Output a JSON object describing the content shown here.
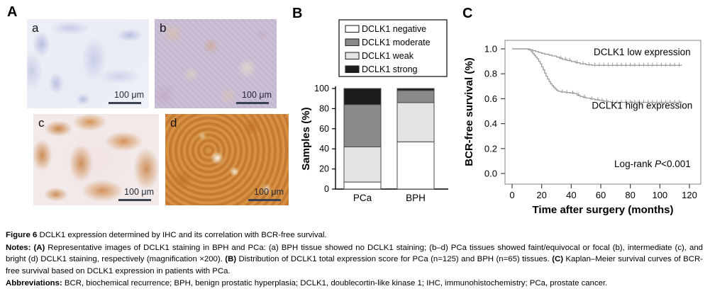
{
  "panelA": {
    "label": "A",
    "images": [
      {
        "label": "a",
        "scale_label": "100 μm",
        "stain_style": "bph-negative-hematoxylin"
      },
      {
        "label": "b",
        "scale_label": "100 μm",
        "stain_style": "pca-faint-equivocal"
      },
      {
        "label": "c",
        "scale_label": "100 μm",
        "stain_style": "pca-intermediate"
      },
      {
        "label": "d",
        "scale_label": "100 μm",
        "stain_style": "pca-bright"
      }
    ]
  },
  "panelB": {
    "label": "B"
  },
  "panelC": {
    "label": "C"
  },
  "chart_data": [
    {
      "type": "bar",
      "stacked": true,
      "title": "",
      "xlabel": "",
      "ylabel": "Samples (%)",
      "categories": [
        "PCa",
        "BPH"
      ],
      "ylim": [
        0,
        100
      ],
      "yticks": [
        0,
        20,
        40,
        60,
        80,
        100
      ],
      "grid": false,
      "legend_position": "top",
      "legend_order": [
        "DCLK1 negative",
        "DCLK1 moderate",
        "DCLK1 weak",
        "DCLK1 strong"
      ],
      "bar_border_color": "#4a4a4a",
      "series": [
        {
          "name": "DCLK1 negative",
          "color": "#ffffff",
          "values": [
            7,
            47
          ]
        },
        {
          "name": "DCLK1 weak",
          "color": "#e4e4e4",
          "values": [
            35,
            39
          ]
        },
        {
          "name": "DCLK1 moderate",
          "color": "#8a8a8a",
          "values": [
            42,
            12
          ]
        },
        {
          "name": "DCLK1 strong",
          "color": "#1c1c1c",
          "values": [
            16,
            2
          ]
        }
      ]
    },
    {
      "type": "line",
      "subtype": "kaplan-meier-step",
      "title": "",
      "xlabel": "Time after surgery (months)",
      "ylabel": "BCR-free survival (%)",
      "xlim": [
        0,
        125
      ],
      "ylim": [
        0.0,
        1.0
      ],
      "xticks": [
        0,
        20,
        40,
        60,
        80,
        100,
        120
      ],
      "yticks": [
        0.0,
        0.2,
        0.4,
        0.6,
        0.8,
        1.0
      ],
      "grid": false,
      "line_color": "#9a9a9a",
      "series": [
        {
          "name": "DCLK1 low expression",
          "points": [
            [
              0,
              1.0
            ],
            [
              9,
              1.0
            ],
            [
              11,
              0.993
            ],
            [
              14,
              0.985
            ],
            [
              16,
              0.978
            ],
            [
              18,
              0.971
            ],
            [
              20,
              0.964
            ],
            [
              22,
              0.957
            ],
            [
              25,
              0.95
            ],
            [
              27,
              0.943
            ],
            [
              30,
              0.934
            ],
            [
              32,
              0.925
            ],
            [
              34,
              0.916
            ],
            [
              37,
              0.907
            ],
            [
              40,
              0.898
            ],
            [
              43,
              0.889
            ],
            [
              46,
              0.88
            ],
            [
              50,
              0.872
            ],
            [
              54,
              0.868
            ],
            [
              115,
              0.868
            ]
          ],
          "censors": [
            33,
            36,
            39,
            44,
            48,
            52,
            56,
            59,
            62,
            65,
            68,
            71,
            74,
            77,
            80,
            83,
            86,
            89,
            92,
            95,
            98,
            101,
            104,
            107,
            110,
            113
          ]
        },
        {
          "name": "DCLK1 high expression",
          "points": [
            [
              0,
              1.0
            ],
            [
              10,
              1.0
            ],
            [
              12,
              0.99
            ],
            [
              13,
              0.976
            ],
            [
              14,
              0.962
            ],
            [
              15,
              0.948
            ],
            [
              16,
              0.934
            ],
            [
              17,
              0.92
            ],
            [
              18,
              0.9
            ],
            [
              19,
              0.88
            ],
            [
              20,
              0.856
            ],
            [
              21,
              0.832
            ],
            [
              22,
              0.806
            ],
            [
              23,
              0.78
            ],
            [
              24,
              0.758
            ],
            [
              25,
              0.738
            ],
            [
              26,
              0.72
            ],
            [
              27,
              0.705
            ],
            [
              28,
              0.692
            ],
            [
              29,
              0.68
            ],
            [
              30,
              0.668
            ],
            [
              31,
              0.66
            ],
            [
              33,
              0.654
            ],
            [
              36,
              0.65
            ],
            [
              39,
              0.646
            ],
            [
              42,
              0.642
            ],
            [
              44,
              0.628
            ],
            [
              46,
              0.618
            ],
            [
              48,
              0.612
            ],
            [
              50,
              0.605
            ],
            [
              53,
              0.598
            ],
            [
              56,
              0.592
            ],
            [
              59,
              0.586
            ],
            [
              62,
              0.58
            ],
            [
              65,
              0.575
            ],
            [
              67,
              0.571
            ],
            [
              115,
              0.571
            ]
          ],
          "censors": [
            34,
            37,
            41,
            45,
            49,
            54,
            58,
            61,
            64,
            68,
            71,
            74,
            77,
            80,
            83,
            86,
            89,
            92,
            95,
            98,
            101,
            104,
            107,
            110,
            113
          ]
        }
      ],
      "annotations": [
        {
          "parts": [
            {
              "t": "DCLK1 low expression"
            }
          ],
          "x": 88,
          "y": 0.95
        },
        {
          "parts": [
            {
              "t": "DCLK1 high expression"
            }
          ],
          "x": 88,
          "y": 0.52
        },
        {
          "parts": [
            {
              "t": "Log-rank "
            },
            {
              "t": "P",
              "i": true
            },
            {
              "t": "<0.001"
            }
          ],
          "x": 95,
          "y": 0.05
        }
      ]
    }
  ],
  "caption": {
    "title_parts": [
      {
        "t": "Figure 6 ",
        "b": true
      },
      {
        "t": "DCLK1 expression determined by IHC and its correlation with BCR-free survival."
      }
    ],
    "notes_parts": [
      {
        "t": "Notes: ",
        "b": true
      },
      {
        "t": "(A)",
        "b": true
      },
      {
        "t": " Representative images of DCLK1 staining in BPH and PCa: (a) BPH tissue showed no DCLK1 staining; (b–d) PCa tissues showed faint/equivocal or focal (b), intermediate (c), and bright (d) DCLK1 staining, respectively (magnification ×200). "
      },
      {
        "t": "(B)",
        "b": true
      },
      {
        "t": " Distribution of DCLK1 total expression score for PCa (n=125) and BPH (n=65) tissues. "
      },
      {
        "t": "(C)",
        "b": true
      },
      {
        "t": " Kaplan–Meier survival curves of BCR-free survival based on DCLK1 expression in patients with PCa."
      }
    ],
    "abbrev_parts": [
      {
        "t": "Abbreviations: ",
        "b": true
      },
      {
        "t": "BCR, biochemical recurrence; BPH, benign prostatic hyperplasia; DCLK1, doublecortin-like kinase 1; IHC, immunohistochemistry; PCa, prostate cancer."
      }
    ]
  },
  "colors": {
    "bar_negative": "#ffffff",
    "bar_weak": "#e4e4e4",
    "bar_moderate": "#8a8a8a",
    "bar_strong": "#1c1c1c",
    "km_curve_gray": "#9a9a9a",
    "stain_orange": "#cd863a",
    "stain_lavender": "#a9b0d6"
  }
}
